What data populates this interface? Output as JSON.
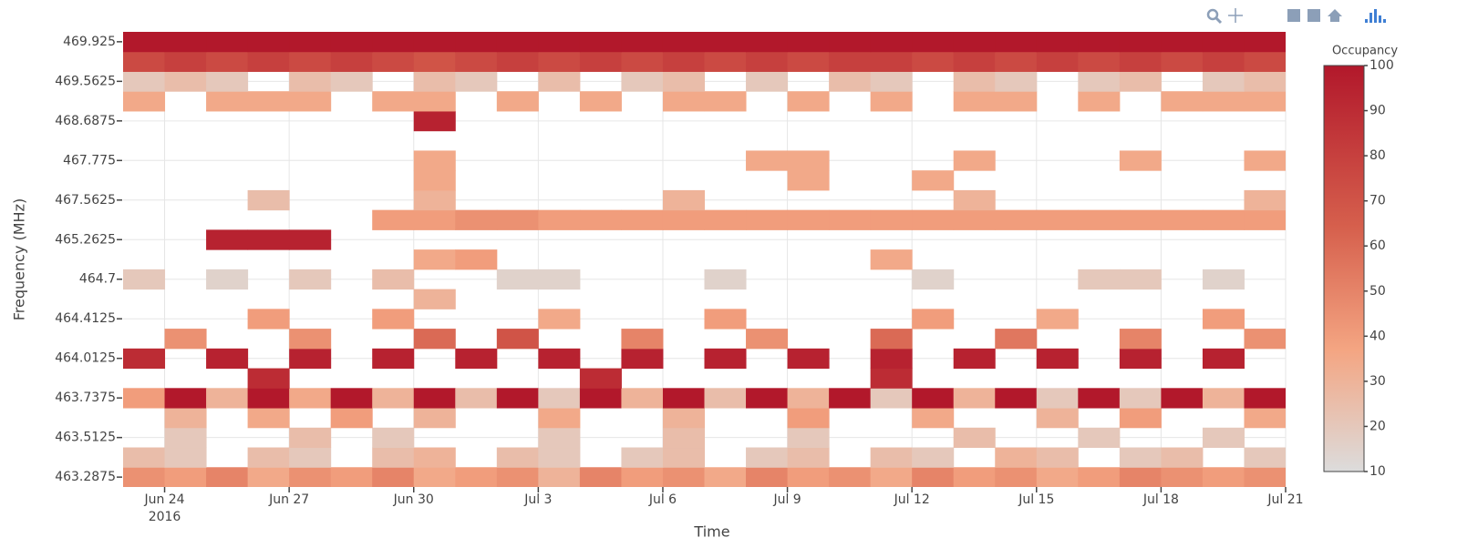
{
  "chart_data": {
    "type": "heatmap",
    "xlabel": "Time",
    "ylabel": "Frequency (MHz)",
    "colorbar_title": "Occupancy",
    "zlim": [
      10,
      100
    ],
    "zticks": [
      10,
      20,
      30,
      40,
      50,
      60,
      70,
      80,
      90,
      100
    ],
    "colorscale": [
      [
        0,
        "#dcdcdc"
      ],
      [
        0.3,
        "#f4a582"
      ],
      [
        0.6,
        "#d6604d"
      ],
      [
        1,
        "#b2182b"
      ]
    ],
    "grid": true,
    "xlim": [
      "2016-06-23",
      "2016-07-21"
    ],
    "xticks": [
      {
        "value": "2016-06-24",
        "label": "Jun 24\n2016"
      },
      {
        "value": "2016-06-27",
        "label": "Jun 27"
      },
      {
        "value": "2016-06-30",
        "label": "Jun 30"
      },
      {
        "value": "2016-07-03",
        "label": "Jul 3"
      },
      {
        "value": "2016-07-06",
        "label": "Jul 6"
      },
      {
        "value": "2016-07-09",
        "label": "Jul 9"
      },
      {
        "value": "2016-07-12",
        "label": "Jul 12"
      },
      {
        "value": "2016-07-15",
        "label": "Jul 15"
      },
      {
        "value": "2016-07-18",
        "label": "Jul 18"
      },
      {
        "value": "2016-07-21",
        "label": "Jul 21"
      }
    ],
    "x": [
      "2016-06-23",
      "2016-06-24",
      "2016-06-25",
      "2016-06-26",
      "2016-06-27",
      "2016-06-28",
      "2016-06-29",
      "2016-06-30",
      "2016-07-01",
      "2016-07-02",
      "2016-07-03",
      "2016-07-04",
      "2016-07-05",
      "2016-07-06",
      "2016-07-07",
      "2016-07-08",
      "2016-07-09",
      "2016-07-10",
      "2016-07-11",
      "2016-07-12",
      "2016-07-13",
      "2016-07-14",
      "2016-07-15",
      "2016-07-16",
      "2016-07-17",
      "2016-07-18",
      "2016-07-19",
      "2016-07-20"
    ],
    "y": [
      "463.2875",
      null,
      "463.5125",
      null,
      "463.7375",
      null,
      "464.0125",
      null,
      "464.4125",
      null,
      "464.7",
      null,
      "465.2625",
      null,
      "467.5625",
      null,
      "467.775",
      null,
      "468.6875",
      null,
      "469.5625",
      null,
      "469.925"
    ],
    "z": [
      [
        45,
        40,
        50,
        35,
        45,
        40,
        50,
        35,
        40,
        45,
        30,
        50,
        40,
        45,
        35,
        50,
        40,
        45,
        35,
        50,
        40,
        45,
        35,
        40,
        50,
        45,
        40,
        45
      ],
      [
        25,
        20,
        null,
        25,
        20,
        null,
        25,
        30,
        null,
        25,
        20,
        null,
        20,
        25,
        null,
        20,
        25,
        null,
        25,
        20,
        null,
        30,
        25,
        null,
        20,
        25,
        null,
        20
      ],
      [
        null,
        20,
        null,
        null,
        25,
        null,
        20,
        null,
        null,
        null,
        20,
        null,
        null,
        25,
        null,
        null,
        20,
        null,
        null,
        null,
        25,
        null,
        null,
        20,
        null,
        null,
        20,
        null
      ],
      [
        null,
        30,
        null,
        35,
        null,
        40,
        null,
        30,
        null,
        null,
        35,
        null,
        null,
        30,
        null,
        null,
        40,
        null,
        null,
        35,
        null,
        null,
        30,
        null,
        40,
        null,
        null,
        35
      ],
      [
        40,
        100,
        30,
        100,
        35,
        100,
        30,
        100,
        25,
        100,
        20,
        100,
        30,
        100,
        25,
        100,
        30,
        100,
        20,
        100,
        30,
        100,
        20,
        100,
        20,
        100,
        30,
        100
      ],
      [
        null,
        null,
        null,
        90,
        null,
        null,
        null,
        null,
        null,
        null,
        null,
        90,
        null,
        null,
        null,
        null,
        null,
        null,
        90,
        null,
        null,
        null,
        null,
        null,
        null,
        null,
        null,
        null
      ],
      [
        90,
        null,
        95,
        null,
        95,
        null,
        95,
        null,
        95,
        null,
        95,
        null,
        95,
        null,
        95,
        null,
        95,
        null,
        95,
        null,
        95,
        null,
        95,
        null,
        95,
        null,
        95,
        null
      ],
      [
        null,
        45,
        null,
        null,
        45,
        null,
        null,
        60,
        null,
        70,
        null,
        null,
        50,
        null,
        null,
        45,
        null,
        null,
        60,
        null,
        null,
        55,
        null,
        null,
        50,
        null,
        null,
        45
      ],
      [
        null,
        null,
        null,
        40,
        null,
        null,
        40,
        null,
        null,
        null,
        35,
        null,
        null,
        null,
        40,
        null,
        null,
        null,
        null,
        40,
        null,
        null,
        35,
        null,
        null,
        null,
        40,
        null
      ],
      [
        null,
        null,
        null,
        null,
        null,
        null,
        null,
        30,
        null,
        null,
        null,
        null,
        null,
        null,
        null,
        null,
        null,
        null,
        null,
        null,
        null,
        null,
        null,
        null,
        null,
        null,
        null,
        null
      ],
      [
        20,
        null,
        15,
        null,
        20,
        null,
        25,
        null,
        null,
        15,
        15,
        null,
        null,
        null,
        15,
        null,
        null,
        null,
        null,
        15,
        null,
        null,
        null,
        20,
        20,
        null,
        15,
        null
      ],
      [
        null,
        null,
        null,
        null,
        null,
        null,
        null,
        35,
        40,
        null,
        null,
        null,
        null,
        null,
        null,
        null,
        null,
        null,
        35,
        null,
        null,
        null,
        null,
        null,
        null,
        null,
        null,
        null
      ],
      [
        null,
        null,
        95,
        95,
        95,
        null,
        null,
        null,
        null,
        null,
        null,
        null,
        null,
        null,
        null,
        null,
        null,
        null,
        null,
        null,
        null,
        null,
        null,
        null,
        null,
        null,
        null,
        null
      ],
      [
        null,
        null,
        null,
        null,
        null,
        null,
        40,
        40,
        45,
        45,
        40,
        40,
        40,
        40,
        40,
        40,
        40,
        40,
        40,
        40,
        40,
        40,
        40,
        40,
        40,
        40,
        40,
        40
      ],
      [
        null,
        null,
        null,
        25,
        null,
        null,
        null,
        30,
        null,
        null,
        null,
        null,
        null,
        30,
        null,
        null,
        null,
        null,
        null,
        null,
        30,
        null,
        null,
        null,
        null,
        null,
        null,
        30
      ],
      [
        null,
        null,
        null,
        null,
        null,
        null,
        null,
        35,
        null,
        null,
        null,
        null,
        null,
        null,
        null,
        null,
        35,
        null,
        null,
        35,
        null,
        null,
        null,
        null,
        null,
        null,
        null,
        null
      ],
      [
        null,
        null,
        null,
        null,
        null,
        null,
        null,
        35,
        null,
        null,
        null,
        null,
        null,
        null,
        null,
        35,
        35,
        null,
        null,
        null,
        35,
        null,
        null,
        null,
        35,
        null,
        null,
        35
      ],
      [
        null,
        null,
        null,
        null,
        null,
        null,
        null,
        null,
        null,
        null,
        null,
        null,
        null,
        null,
        null,
        null,
        null,
        null,
        null,
        null,
        null,
        null,
        null,
        null,
        null,
        null,
        null,
        null
      ],
      [
        null,
        null,
        null,
        null,
        null,
        null,
        null,
        95,
        null,
        null,
        null,
        null,
        null,
        null,
        null,
        null,
        null,
        null,
        null,
        null,
        null,
        null,
        null,
        null,
        null,
        null,
        null,
        null
      ],
      [
        35,
        null,
        35,
        35,
        35,
        null,
        35,
        35,
        null,
        35,
        null,
        35,
        null,
        35,
        35,
        null,
        35,
        null,
        35,
        null,
        35,
        35,
        null,
        35,
        null,
        35,
        35,
        35
      ],
      [
        20,
        25,
        20,
        null,
        25,
        20,
        null,
        25,
        20,
        null,
        25,
        null,
        20,
        25,
        null,
        20,
        null,
        25,
        20,
        null,
        25,
        20,
        null,
        20,
        25,
        null,
        20,
        25
      ],
      [
        75,
        80,
        75,
        80,
        75,
        80,
        75,
        70,
        75,
        80,
        75,
        80,
        75,
        80,
        75,
        80,
        75,
        80,
        80,
        75,
        80,
        75,
        80,
        75,
        80,
        75,
        80,
        75
      ],
      [
        100,
        100,
        100,
        100,
        100,
        100,
        100,
        100,
        100,
        100,
        100,
        100,
        100,
        100,
        100,
        100,
        100,
        100,
        100,
        100,
        100,
        100,
        100,
        100,
        100,
        100,
        100,
        100
      ]
    ]
  }
}
